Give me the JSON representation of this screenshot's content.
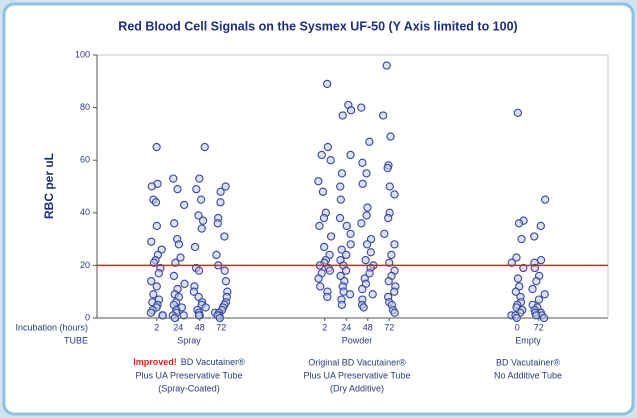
{
  "chart_data": {
    "type": "strip",
    "title": "Red Blood Cell Signals on the Sysmex UF-50 (Y Axis limited to 100)",
    "y_label": "RBC per uL",
    "incubation_label": "Incubation (hours)",
    "tube_label": "TUBE",
    "ylim": [
      0,
      100
    ],
    "yticks": [
      0,
      20,
      40,
      60,
      80,
      100
    ],
    "reference_line": {
      "value": 20,
      "color": "#e02020"
    },
    "point_color": "#34489e",
    "groups": [
      {
        "name": "Spray",
        "incubations": [
          "2",
          "24",
          "48",
          "72"
        ],
        "tube_highlight": "Improved!",
        "tube_lines": [
          "BD Vacutainer®",
          "Plus UA Preservative Tube",
          "(Spray-Coated)"
        ],
        "values": [
          [
            65,
            51,
            50,
            45,
            44,
            35,
            29,
            26,
            24,
            22,
            21,
            19,
            17,
            14,
            12,
            9,
            7,
            6,
            5,
            4,
            3,
            2,
            1,
            1
          ],
          [
            53,
            49,
            43,
            36,
            30,
            28,
            23,
            21,
            16,
            13,
            11,
            9,
            8,
            6,
            5,
            4,
            3,
            2,
            1,
            1,
            0
          ],
          [
            65,
            53,
            49,
            45,
            39,
            37,
            34,
            27,
            19,
            18,
            12,
            10,
            8,
            6,
            5,
            4,
            3,
            2,
            1,
            1
          ],
          [
            50,
            48,
            44,
            38,
            36,
            31,
            24,
            20,
            18,
            14,
            10,
            8,
            6,
            5,
            4,
            3,
            2,
            2,
            1,
            1,
            0
          ]
        ]
      },
      {
        "name": "Powder",
        "incubations": [
          "2",
          "24",
          "48",
          "72"
        ],
        "tube_lines": [
          "Original BD Vacutainer®",
          "Plus UA Preservative Tube",
          "(Dry Additive)"
        ],
        "values": [
          [
            89,
            65,
            62,
            60,
            52,
            48,
            40,
            38,
            35,
            31,
            27,
            24,
            22,
            21,
            20,
            19,
            18,
            17,
            15,
            12,
            10,
            8
          ],
          [
            81,
            79,
            77,
            62,
            55,
            50,
            45,
            38,
            35,
            32,
            28,
            26,
            24,
            22,
            20,
            18,
            16,
            14,
            12,
            10,
            9,
            7,
            5
          ],
          [
            80,
            67,
            59,
            55,
            51,
            42,
            39,
            36,
            30,
            28,
            25,
            22,
            20,
            19,
            17,
            15,
            13,
            11,
            9,
            7,
            5,
            4
          ],
          [
            96,
            77,
            69,
            58,
            57,
            50,
            47,
            40,
            38,
            32,
            28,
            24,
            21,
            18,
            16,
            14,
            12,
            10,
            8,
            6,
            5,
            3,
            2
          ]
        ]
      },
      {
        "name": "Empty",
        "incubations": [
          "0",
          "72"
        ],
        "tube_lines": [
          "BD Vacutainer®",
          "No Additive Tube"
        ],
        "values": [
          [
            78,
            37,
            36,
            30,
            23,
            21,
            19,
            15,
            12,
            10,
            8,
            6,
            5,
            4,
            3,
            2,
            1,
            1,
            0
          ],
          [
            45,
            35,
            31,
            22,
            21,
            19,
            16,
            14,
            11,
            9,
            7,
            5,
            4,
            3,
            2,
            2,
            1,
            1,
            0
          ]
        ]
      }
    ]
  }
}
